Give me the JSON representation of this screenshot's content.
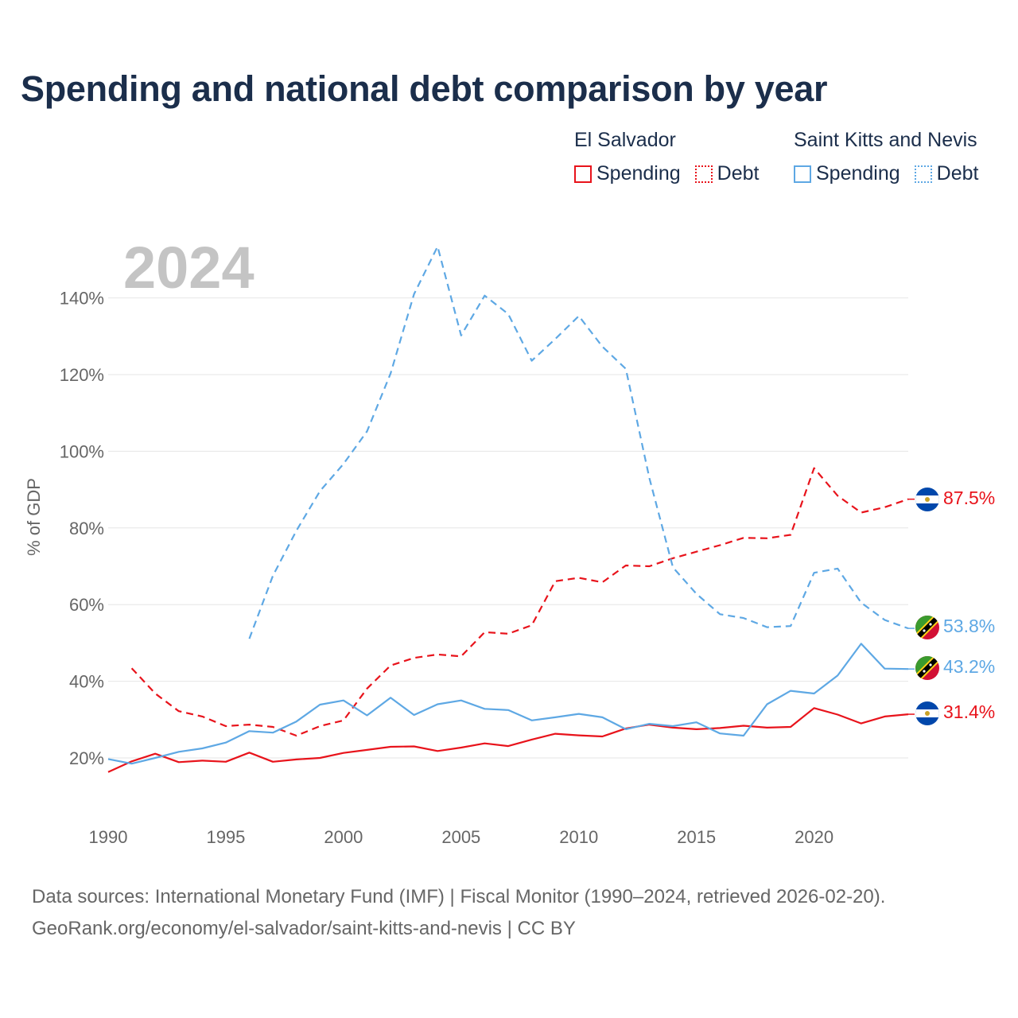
{
  "title": "Spending and national debt comparison by year",
  "legend": [
    {
      "country": "El Salvador",
      "color": "#e8131b",
      "items": [
        "Spending",
        "Debt"
      ]
    },
    {
      "country": "Saint Kitts and Nevis",
      "color": "#5ea8e4",
      "items": [
        "Spending",
        "Debt"
      ]
    }
  ],
  "chart_data": {
    "type": "line",
    "year_label": "2024",
    "ylabel": "% of GDP",
    "xlim": [
      1990,
      2024
    ],
    "ylim": [
      8,
      150
    ],
    "x_ticks": [
      "1990",
      "1995",
      "2000",
      "2005",
      "2010",
      "2015",
      "2020"
    ],
    "y_ticks": [
      "20%",
      "40%",
      "60%",
      "80%",
      "100%",
      "120%",
      "140%"
    ],
    "y_tick_values": [
      20,
      40,
      60,
      80,
      100,
      120,
      140
    ],
    "x_tick_values": [
      1990,
      1995,
      2000,
      2005,
      2010,
      2015,
      2020
    ],
    "series": [
      {
        "name": "El Salvador Spending",
        "country": "El Salvador",
        "kind": "Spending",
        "color": "#e8131b",
        "dash": false,
        "start_year": 1990,
        "end_label": "31.4%",
        "values": [
          16.3,
          19.1,
          21.1,
          18.9,
          19.3,
          19.0,
          21.4,
          19.0,
          19.6,
          20.0,
          21.3,
          22.1,
          22.9,
          23.0,
          21.8,
          22.7,
          23.8,
          23.1,
          24.8,
          26.3,
          25.9,
          25.6,
          27.7,
          28.7,
          27.9,
          27.5,
          27.8,
          28.4,
          27.9,
          28.1,
          33.0,
          31.3,
          29.0,
          30.8,
          31.4
        ]
      },
      {
        "name": "El Salvador Debt",
        "country": "El Salvador",
        "kind": "Debt",
        "color": "#e8131b",
        "dash": true,
        "start_year": 1991,
        "end_label": "87.5%",
        "values": [
          43.4,
          36.8,
          32.2,
          30.8,
          28.3,
          28.7,
          28.1,
          25.8,
          28.3,
          29.8,
          38.1,
          44.1,
          46.1,
          47.0,
          46.5,
          52.8,
          52.4,
          54.6,
          66.1,
          67.0,
          65.8,
          70.2,
          70.0,
          72.1,
          73.8,
          75.5,
          77.4,
          77.3,
          78.2,
          95.6,
          88.4,
          84.0,
          85.4,
          87.5
        ]
      },
      {
        "name": "Saint Kitts and Nevis Spending",
        "country": "Saint Kitts and Nevis",
        "kind": "Spending",
        "color": "#5ea8e4",
        "dash": false,
        "start_year": 1990,
        "end_label": "43.2%",
        "values": [
          19.7,
          18.5,
          20.0,
          21.6,
          22.5,
          24.0,
          27.0,
          26.6,
          29.5,
          33.9,
          35.0,
          31.1,
          35.7,
          31.2,
          34.0,
          35.0,
          32.8,
          32.5,
          29.8,
          30.6,
          31.5,
          30.6,
          27.5,
          28.9,
          28.3,
          29.3,
          26.4,
          25.8,
          34.0,
          37.5,
          36.8,
          41.5,
          49.8,
          43.3,
          43.2
        ]
      },
      {
        "name": "Saint Kitts and Nevis Debt",
        "country": "Saint Kitts and Nevis",
        "kind": "Debt",
        "color": "#5ea8e4",
        "dash": true,
        "start_year": 1996,
        "end_label": "53.8%",
        "values": [
          51.1,
          67.5,
          79.3,
          89.6,
          96.7,
          105.2,
          120.3,
          141.0,
          153.4,
          130.2,
          140.6,
          135.8,
          123.6,
          129.3,
          135.3,
          127.3,
          121.5,
          93.0,
          69.7,
          62.8,
          57.5,
          56.5,
          54.1,
          54.4,
          68.3,
          69.4,
          60.5,
          56.0,
          53.8
        ]
      }
    ]
  },
  "sources": {
    "line1": "Data sources: International Monetary Fund (IMF) | Fiscal Monitor (1990–2024, retrieved 2026-02-20).",
    "line2": "GeoRank.org/economy/el-salvador/saint-kitts-and-nevis | CC BY"
  }
}
